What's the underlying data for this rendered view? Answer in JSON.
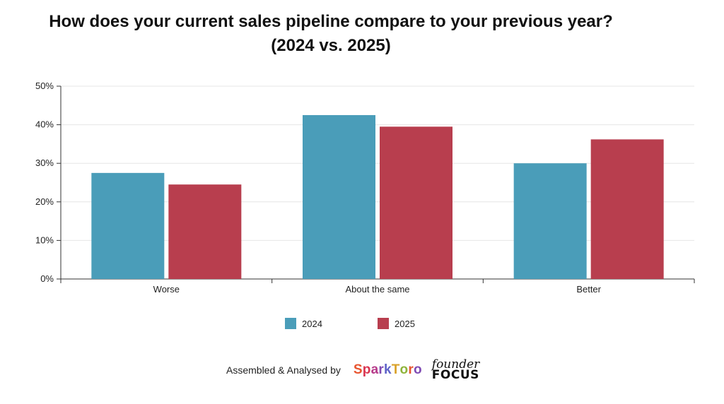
{
  "chart_data": {
    "type": "bar",
    "title_line1": "How does your current sales pipeline compare to your previous year?",
    "title_line2": "(2024 vs. 2025)",
    "categories": [
      "Worse",
      "About the same",
      "Better"
    ],
    "series": [
      {
        "name": "2024",
        "color": "#4A9DB9",
        "values": [
          27.5,
          42.5,
          30.0
        ]
      },
      {
        "name": "2025",
        "color": "#B83E4E",
        "values": [
          24.5,
          39.5,
          36.2
        ]
      }
    ],
    "ylim": [
      0,
      50
    ],
    "yticks": [
      0,
      10,
      20,
      30,
      40,
      50
    ],
    "ytick_labels": [
      "0%",
      "10%",
      "20%",
      "30%",
      "40%",
      "50%"
    ],
    "xlabel": "",
    "ylabel": "",
    "grid": true,
    "legend_position": "bottom"
  },
  "footer": {
    "credit": "Assembled & Analysed by",
    "logo1_letters": [
      "S",
      "p",
      "a",
      "r",
      "k",
      "T",
      "o",
      "r",
      "o"
    ],
    "logo1_colors": [
      "#E8542F",
      "#D9344F",
      "#B63A8A",
      "#7F4BB3",
      "#5E63C8",
      "#D9A12A",
      "#8FB43A",
      "#E8542F",
      "#7F4BB3"
    ],
    "logo2_line1": "founder",
    "logo2_line2": "FOCUS"
  }
}
